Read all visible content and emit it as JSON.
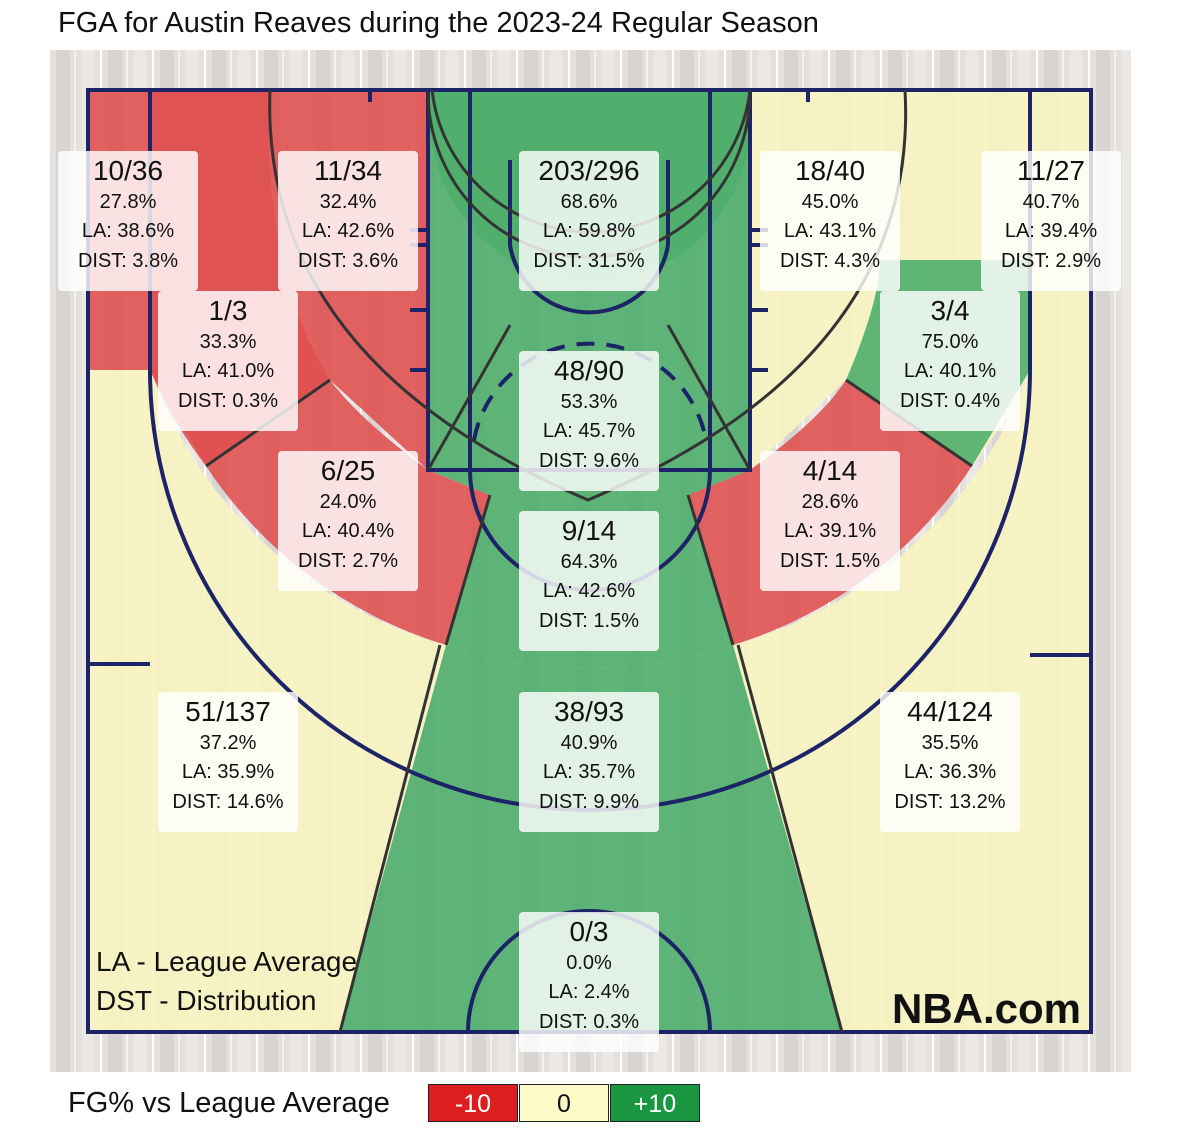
{
  "title": "FGA for Austin Reaves during the 2023-24 Regular Season",
  "legend": {
    "title": "FG% vs League Average",
    "items": [
      {
        "label": "-10",
        "color": "#dc1e1e",
        "text_color": "#ffffff"
      },
      {
        "label": "0",
        "color": "#fdfbc8",
        "text_color": "#111111"
      },
      {
        "label": "+10",
        "color": "#1a9641",
        "text_color": "#ffffff"
      }
    ]
  },
  "footnotes": [
    "LA - League Average",
    "DST - Distribution"
  ],
  "brand": "NBA.com",
  "colors": {
    "below": "#dc1e1e",
    "neutral": "#f7f3b0",
    "above": "#1a9641",
    "court_lines": "#1c2366"
  },
  "chart_data": {
    "type": "heatmap",
    "title": "FGA for Austin Reaves during the 2023-24 Regular Season",
    "zones": [
      {
        "id": "left-corner-3",
        "fg": "10/36",
        "pct": "27.8%",
        "la": "LA: 38.6%",
        "dist": "DIST: 3.8%",
        "made": 10,
        "attempts": 36,
        "fg_pct": 27.8,
        "league_avg": 38.6,
        "distribution": 3.8,
        "rating": "below"
      },
      {
        "id": "left-wing-3",
        "fg": "11/34",
        "pct": "32.4%",
        "la": "LA: 42.6%",
        "dist": "DIST: 3.6%",
        "made": 11,
        "attempts": 34,
        "fg_pct": 32.4,
        "league_avg": 42.6,
        "distribution": 3.6,
        "rating": "below"
      },
      {
        "id": "restricted-area",
        "fg": "203/296",
        "pct": "68.6%",
        "la": "LA: 59.8%",
        "dist": "DIST: 31.5%",
        "made": 203,
        "attempts": 296,
        "fg_pct": 68.6,
        "league_avg": 59.8,
        "distribution": 31.5,
        "rating": "above"
      },
      {
        "id": "right-wing-3",
        "fg": "18/40",
        "pct": "45.0%",
        "la": "LA: 43.1%",
        "dist": "DIST: 4.3%",
        "made": 18,
        "attempts": 40,
        "fg_pct": 45.0,
        "league_avg": 43.1,
        "distribution": 4.3,
        "rating": "neutral"
      },
      {
        "id": "right-corner-3",
        "fg": "11/27",
        "pct": "40.7%",
        "la": "LA: 39.4%",
        "dist": "DIST: 2.9%",
        "made": 11,
        "attempts": 27,
        "fg_pct": 40.7,
        "league_avg": 39.4,
        "distribution": 2.9,
        "rating": "neutral"
      },
      {
        "id": "left-baseline-mid",
        "fg": "1/3",
        "pct": "33.3%",
        "la": "LA: 41.0%",
        "dist": "DIST: 0.3%",
        "made": 1,
        "attempts": 3,
        "fg_pct": 33.3,
        "league_avg": 41.0,
        "distribution": 0.3,
        "rating": "below"
      },
      {
        "id": "paint-non-ra",
        "fg": "48/90",
        "pct": "53.3%",
        "la": "LA: 45.7%",
        "dist": "DIST: 9.6%",
        "made": 48,
        "attempts": 90,
        "fg_pct": 53.3,
        "league_avg": 45.7,
        "distribution": 9.6,
        "rating": "above"
      },
      {
        "id": "right-baseline-mid",
        "fg": "3/4",
        "pct": "75.0%",
        "la": "LA: 40.1%",
        "dist": "DIST: 0.4%",
        "made": 3,
        "attempts": 4,
        "fg_pct": 75.0,
        "league_avg": 40.1,
        "distribution": 0.4,
        "rating": "above"
      },
      {
        "id": "left-wing-mid",
        "fg": "6/25",
        "pct": "24.0%",
        "la": "LA: 40.4%",
        "dist": "DIST: 2.7%",
        "made": 6,
        "attempts": 25,
        "fg_pct": 24.0,
        "league_avg": 40.4,
        "distribution": 2.7,
        "rating": "below"
      },
      {
        "id": "top-key-mid",
        "fg": "9/14",
        "pct": "64.3%",
        "la": "LA: 42.6%",
        "dist": "DIST: 1.5%",
        "made": 9,
        "attempts": 14,
        "fg_pct": 64.3,
        "league_avg": 42.6,
        "distribution": 1.5,
        "rating": "above"
      },
      {
        "id": "right-wing-mid",
        "fg": "4/14",
        "pct": "28.6%",
        "la": "LA: 39.1%",
        "dist": "DIST: 1.5%",
        "made": 4,
        "attempts": 14,
        "fg_pct": 28.6,
        "league_avg": 39.1,
        "distribution": 1.5,
        "rating": "below"
      },
      {
        "id": "left-wing-3pt",
        "fg": "51/137",
        "pct": "37.2%",
        "la": "LA: 35.9%",
        "dist": "DIST: 14.6%",
        "made": 51,
        "attempts": 137,
        "fg_pct": 37.2,
        "league_avg": 35.9,
        "distribution": 14.6,
        "rating": "neutral"
      },
      {
        "id": "top-key-3",
        "fg": "38/93",
        "pct": "40.9%",
        "la": "LA: 35.7%",
        "dist": "DIST: 9.9%",
        "made": 38,
        "attempts": 93,
        "fg_pct": 40.9,
        "league_avg": 35.7,
        "distribution": 9.9,
        "rating": "above"
      },
      {
        "id": "right-wing-3pt",
        "fg": "44/124",
        "pct": "35.5%",
        "la": "LA: 36.3%",
        "dist": "DIST: 13.2%",
        "made": 44,
        "attempts": 124,
        "fg_pct": 35.5,
        "league_avg": 36.3,
        "distribution": 13.2,
        "rating": "neutral"
      },
      {
        "id": "backcourt",
        "fg": "0/3",
        "pct": "0.0%",
        "la": "LA: 2.4%",
        "dist": "DIST: 0.3%",
        "made": 0,
        "attempts": 3,
        "fg_pct": 0.0,
        "league_avg": 2.4,
        "distribution": 0.3,
        "rating": "below"
      }
    ]
  }
}
